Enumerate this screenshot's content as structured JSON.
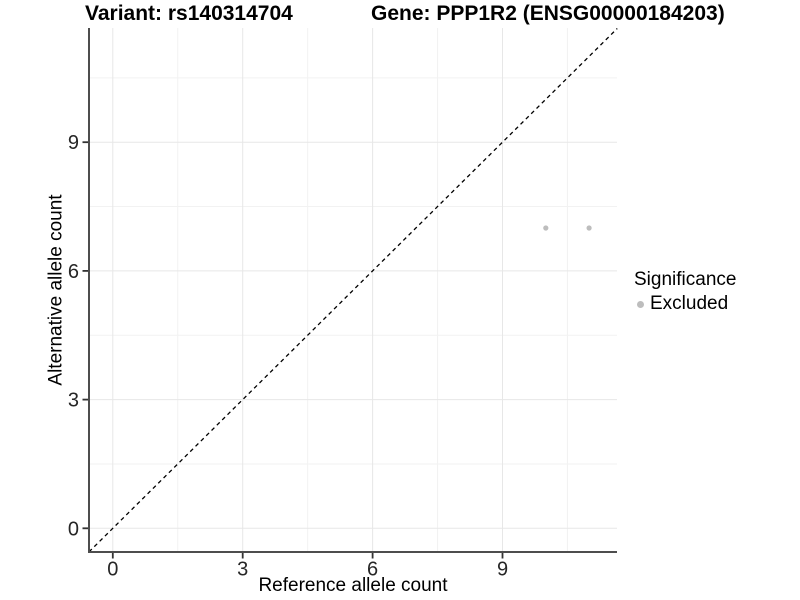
{
  "chart_data": {
    "type": "scatter",
    "title_left": "Variant: rs140314704",
    "title_right": "Gene: PPP1R2 (ENSG00000184203)",
    "xlabel": "Reference allele count",
    "ylabel": "Alternative allele count",
    "xticks": [
      0,
      3,
      6,
      9
    ],
    "yticks": [
      0,
      3,
      6,
      9
    ],
    "xticks_minor": [
      1.5,
      4.5,
      7.5,
      10.5
    ],
    "yticks_minor": [
      1.5,
      4.5,
      7.5,
      10.5
    ],
    "xlim": [
      -0.55,
      11.65
    ],
    "ylim": [
      -0.56,
      11.69
    ],
    "grid": true,
    "reference_line": {
      "type": "identity",
      "equation": "y = x",
      "style": "dashed",
      "color": "#000000"
    },
    "legend": {
      "title": "Significance",
      "position": "right",
      "items": [
        {
          "label": "Excluded",
          "color": "#bdbdbd"
        }
      ]
    },
    "series": [
      {
        "name": "Excluded",
        "color": "#bdbdbd",
        "points": [
          {
            "x": 10,
            "y": 7
          },
          {
            "x": 11,
            "y": 7
          }
        ]
      }
    ]
  },
  "colors": {
    "background": "#ffffff",
    "axis_line": "#4d4d4d",
    "tick_mark": "#333333",
    "tick_label": "#262626",
    "grid_major": "#e7e7e7",
    "grid_minor": "#f2f2f2"
  }
}
